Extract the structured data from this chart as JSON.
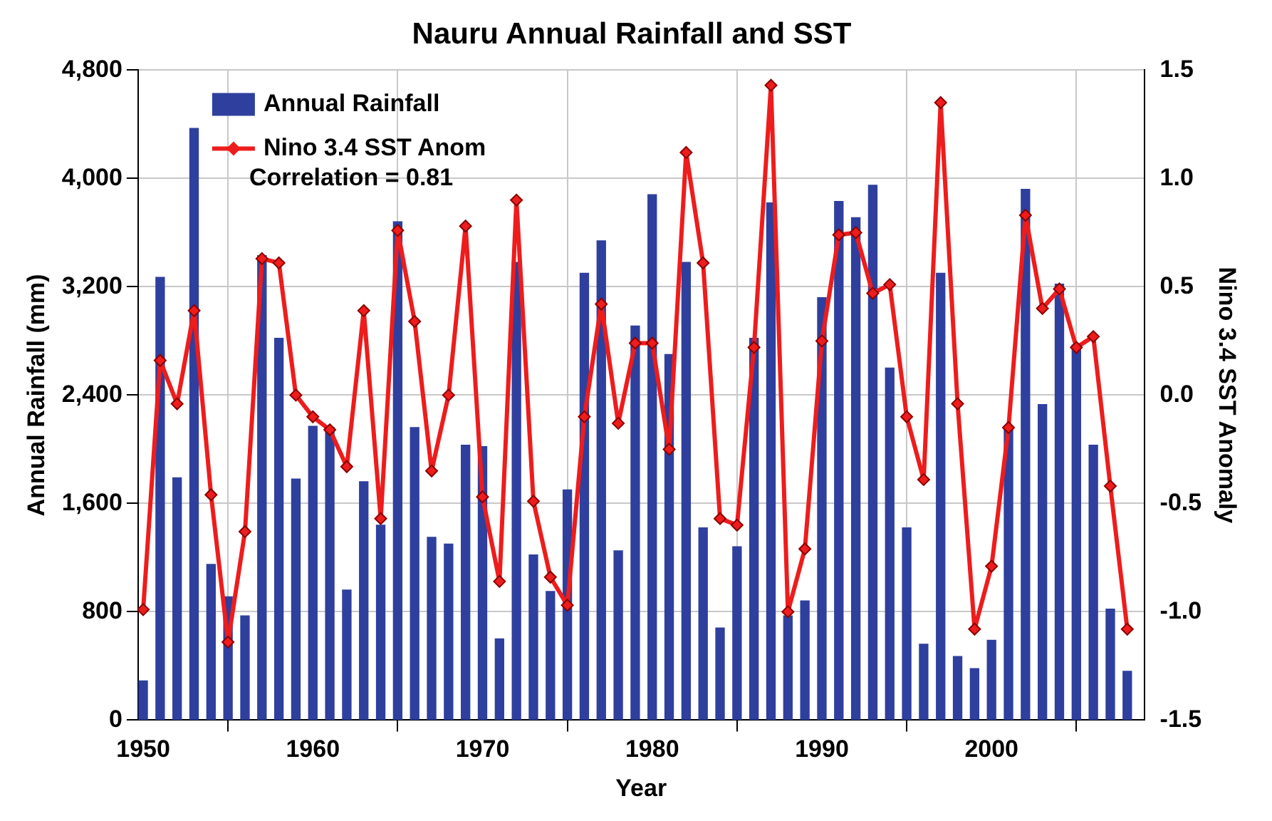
{
  "chart_data": {
    "type": "bar",
    "title": "Nauru Annual Rainfall and SST",
    "xlabel": "Year",
    "ylabel": "Annual Rainfall (mm)",
    "y2label": "Nino 3.4 SST Anomaly",
    "x": [
      1950,
      1951,
      1952,
      1953,
      1954,
      1955,
      1956,
      1957,
      1958,
      1959,
      1960,
      1961,
      1962,
      1963,
      1964,
      1965,
      1966,
      1967,
      1968,
      1969,
      1970,
      1971,
      1972,
      1973,
      1974,
      1975,
      1976,
      1977,
      1978,
      1979,
      1980,
      1981,
      1982,
      1983,
      1984,
      1985,
      1986,
      1987,
      1988,
      1989,
      1990,
      1991,
      1992,
      1993,
      1994,
      1995,
      1996,
      1997,
      1998,
      1999,
      2000,
      2001,
      2002,
      2003,
      2004,
      2005,
      2006,
      2007,
      2008
    ],
    "series": [
      {
        "name": "Annual Rainfall",
        "color": "#2e3f9e",
        "values": [
          290,
          3270,
          1790,
          4370,
          1150,
          910,
          770,
          3430,
          2820,
          1780,
          2170,
          2160,
          960,
          1760,
          1440,
          3680,
          2160,
          1350,
          1300,
          2030,
          2020,
          600,
          3380,
          1220,
          950,
          1700,
          3300,
          3540,
          1250,
          2910,
          3880,
          2700,
          3380,
          1420,
          680,
          1280,
          2820,
          3820,
          770,
          880,
          3120,
          3830,
          3710,
          3950,
          2600,
          1420,
          560,
          3300,
          470,
          380,
          590,
          2160,
          3920,
          2330,
          3220,
          2770,
          2030,
          820,
          360
        ]
      },
      {
        "name": "Nino 3.4 SST Anom",
        "type": "line",
        "axis": "y2",
        "color": "#ee1c1c",
        "marker": "diamond",
        "values": [
          -0.99,
          0.16,
          -0.04,
          0.39,
          -0.46,
          -1.14,
          -0.63,
          0.63,
          0.61,
          0.0,
          -0.1,
          -0.16,
          -0.33,
          0.39,
          -0.57,
          0.76,
          0.34,
          -0.35,
          0.0,
          0.78,
          -0.47,
          -0.86,
          0.9,
          -0.49,
          -0.84,
          -0.97,
          -0.1,
          0.42,
          -0.13,
          0.24,
          0.24,
          -0.25,
          1.12,
          0.61,
          -0.57,
          -0.6,
          0.22,
          1.43,
          -1.0,
          -0.71,
          0.25,
          0.74,
          0.75,
          0.47,
          0.51,
          -0.1,
          -0.39,
          1.35,
          -0.04,
          -1.08,
          -0.79,
          -0.15,
          0.83,
          0.4,
          0.49,
          0.22,
          0.27,
          -0.42,
          -1.08
        ]
      }
    ],
    "xlim": [
      1949.7,
      2009
    ],
    "xticks": [
      1950,
      1960,
      1970,
      1980,
      1990,
      2000
    ],
    "ylim": [
      0,
      4800
    ],
    "yticks": [
      0,
      {
        "value": 800,
        "label": "800"
      },
      {
        "value": 1600,
        "label": "1,600"
      },
      {
        "value": 2400,
        "label": "2,400"
      },
      {
        "value": 3200,
        "label": "3,200"
      },
      {
        "value": 4000,
        "label": "4,000"
      },
      {
        "value": 4800,
        "label": "4,800"
      }
    ],
    "y2lim": [
      -1.5,
      1.5
    ],
    "y2ticks": [
      -1.5,
      {
        "value": -1,
        "label": "-1.0"
      },
      -0.5,
      {
        "value": 0,
        "label": "0.0"
      },
      0.5,
      {
        "value": 1,
        "label": "1.0"
      },
      1.5
    ],
    "grid": true,
    "legend": "top left",
    "annotations": [
      "Correlation = 0.81"
    ]
  }
}
